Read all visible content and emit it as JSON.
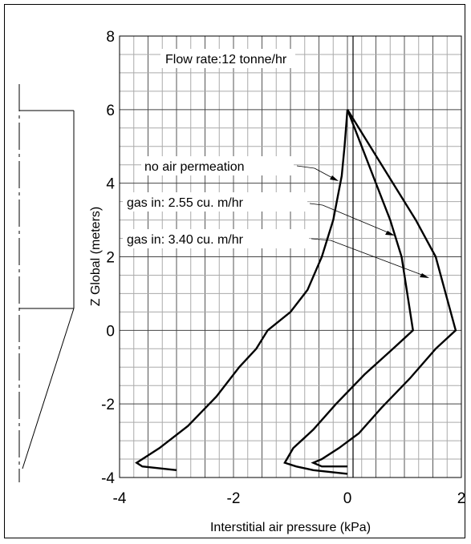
{
  "chart_data": {
    "type": "line",
    "title": "",
    "xlabel": "Interstitial air pressure (kPa)",
    "ylabel": "Z Global (meters)",
    "xlim": [
      -4,
      2
    ],
    "ylim": [
      -4,
      8
    ],
    "x_ticks": [
      "-4",
      "-2",
      "0",
      "2"
    ],
    "y_ticks": [
      "-4",
      "-2",
      "0",
      "2",
      "4",
      "6",
      "8"
    ],
    "grid": true,
    "annotations": [
      {
        "text": "Flow rate:12 tonne/hr"
      },
      {
        "text": "no air permeation",
        "points_to": [
          -0.1,
          3.9
        ]
      },
      {
        "text": "gas in: 2.55 cu. m/hr",
        "points_to": [
          0.85,
          2.4
        ]
      },
      {
        "text": "gas in: 3.40 cu. m/hr",
        "points_to": [
          1.4,
          1.3
        ]
      }
    ],
    "series": [
      {
        "x": [
          0.0,
          -0.05,
          -0.1,
          -0.25,
          -0.45,
          -0.7,
          -1.0,
          -1.4,
          -1.6,
          -1.9,
          -2.3,
          -2.8,
          -3.3,
          -3.7,
          -3.6,
          -3.0
        ],
        "y": [
          6.0,
          5.0,
          4.2,
          3.0,
          2.0,
          1.1,
          0.5,
          0.0,
          -0.5,
          -1.0,
          -1.8,
          -2.6,
          -3.2,
          -3.6,
          -3.7,
          -3.8
        ]
      },
      {
        "x": [
          0.0,
          0.25,
          0.5,
          0.75,
          0.95,
          1.05,
          1.15,
          0.8,
          0.3,
          -0.2,
          -0.6,
          -0.95,
          -1.1,
          -0.9,
          -0.6,
          0.0
        ],
        "y": [
          6.0,
          5.0,
          4.0,
          3.0,
          2.0,
          1.0,
          0.0,
          -0.5,
          -1.2,
          -2.0,
          -2.7,
          -3.2,
          -3.6,
          -3.7,
          -3.8,
          -3.9
        ]
      },
      {
        "x": [
          0.0,
          0.4,
          0.8,
          1.2,
          1.55,
          1.9,
          1.55,
          1.1,
          0.6,
          0.2,
          -0.15,
          -0.45,
          -0.6,
          -0.45,
          0.0
        ],
        "y": [
          6.0,
          5.0,
          4.0,
          3.0,
          2.0,
          0.0,
          -0.5,
          -1.3,
          -2.1,
          -2.8,
          -3.2,
          -3.5,
          -3.6,
          -3.7,
          -3.7
        ]
      }
    ]
  }
}
